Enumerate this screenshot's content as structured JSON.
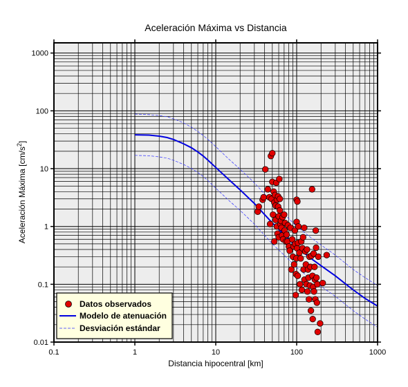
{
  "chart_data": {
    "type": "scatter",
    "title": "Aceleración Máxima vs Distancia",
    "xlabel": "Distancia hipocentral [km]",
    "ylabel_main": "Aceleración Máxima [cm/s",
    "ylabel_sup": "2",
    "ylabel_end": "]",
    "x_scale": "log",
    "y_scale": "log",
    "xlim": [
      0.1,
      1000
    ],
    "ylim": [
      0.01,
      1500
    ],
    "grid": true,
    "legend_position": "bottom-left",
    "x_ticks": [
      {
        "value": 0.1,
        "label": "0.1"
      },
      {
        "value": 1,
        "label": "1"
      },
      {
        "value": 10,
        "label": "10"
      },
      {
        "value": 100,
        "label": "100"
      },
      {
        "value": 1000,
        "label": "1000"
      }
    ],
    "y_ticks": [
      {
        "value": 0.01,
        "label": "0.01"
      },
      {
        "value": 0.1,
        "label": "0.1"
      },
      {
        "value": 1,
        "label": "1"
      },
      {
        "value": 10,
        "label": "10"
      },
      {
        "value": 100,
        "label": "100"
      },
      {
        "value": 1000,
        "label": "1000"
      }
    ],
    "colors": {
      "observed": "#e00000",
      "model": "#0000e0",
      "stddev": "#3030ff",
      "legend_bg": "#ffffe0",
      "plot_bg": "#ededed"
    },
    "series": [
      {
        "name": "Datos observados",
        "kind": "points",
        "points": [
          [
            33,
            1.8
          ],
          [
            34,
            2.2
          ],
          [
            38,
            2.9
          ],
          [
            39,
            3.2
          ],
          [
            41,
            9.7
          ],
          [
            44,
            4.4
          ],
          [
            46,
            3.2
          ],
          [
            47,
            1.1
          ],
          [
            48,
            16.5
          ],
          [
            49,
            3.0
          ],
          [
            50,
            18.5
          ],
          [
            50,
            5.9
          ],
          [
            51,
            1.6
          ],
          [
            52,
            4.0
          ],
          [
            53,
            2.6
          ],
          [
            53,
            0.55
          ],
          [
            54,
            3.5
          ],
          [
            55,
            1.3
          ],
          [
            55,
            2.3
          ],
          [
            56,
            5.7
          ],
          [
            57,
            2.9
          ],
          [
            57,
            1.0
          ],
          [
            58,
            0.75
          ],
          [
            59,
            3.3
          ],
          [
            59,
            2.2
          ],
          [
            60,
            1.5
          ],
          [
            60,
            0.65
          ],
          [
            61,
            6.6
          ],
          [
            62,
            3.0
          ],
          [
            62,
            1.9
          ],
          [
            63,
            1.1
          ],
          [
            64,
            1.25
          ],
          [
            65,
            0.95
          ],
          [
            66,
            0.7
          ],
          [
            67,
            1.45
          ],
          [
            68,
            0.6
          ],
          [
            70,
            1.6
          ],
          [
            71,
            0.85
          ],
          [
            72,
            1.15
          ],
          [
            74,
            0.55
          ],
          [
            75,
            0.72
          ],
          [
            77,
            0.55
          ],
          [
            78,
            1.05
          ],
          [
            80,
            0.45
          ],
          [
            82,
            0.38
          ],
          [
            84,
            0.95
          ],
          [
            86,
            0.18
          ],
          [
            88,
            0.6
          ],
          [
            90,
            0.3
          ],
          [
            92,
            0.45
          ],
          [
            93,
            0.22
          ],
          [
            95,
            0.85
          ],
          [
            96,
            0.5
          ],
          [
            97,
            0.065
          ],
          [
            98,
            0.15
          ],
          [
            99,
            0.28
          ],
          [
            100,
            2.9
          ],
          [
            100,
            1.2
          ],
          [
            101,
            0.42
          ],
          [
            102,
            2.7
          ],
          [
            103,
            0.14
          ],
          [
            104,
            0.52
          ],
          [
            105,
            1.0
          ],
          [
            108,
            0.35
          ],
          [
            110,
            0.1
          ],
          [
            112,
            0.28
          ],
          [
            114,
            0.55
          ],
          [
            116,
            0.08
          ],
          [
            118,
            0.42
          ],
          [
            120,
            0.65
          ],
          [
            122,
            0.18
          ],
          [
            124,
            0.95
          ],
          [
            125,
            0.12
          ],
          [
            128,
            0.37
          ],
          [
            130,
            0.22
          ],
          [
            132,
            0.1
          ],
          [
            134,
            0.4
          ],
          [
            136,
            0.075
          ],
          [
            138,
            0.18
          ],
          [
            140,
            0.13
          ],
          [
            142,
            0.055
          ],
          [
            144,
            0.3
          ],
          [
            146,
            0.095
          ],
          [
            148,
            0.2
          ],
          [
            150,
            0.035
          ],
          [
            152,
            0.31
          ],
          [
            155,
            4.4
          ],
          [
            157,
            0.14
          ],
          [
            158,
            0.025
          ],
          [
            160,
            0.09
          ],
          [
            162,
            0.34
          ],
          [
            164,
            0.075
          ],
          [
            166,
            0.2
          ],
          [
            168,
            0.12
          ],
          [
            170,
            0.055
          ],
          [
            172,
            0.85
          ],
          [
            174,
            0.43
          ],
          [
            176,
            0.13
          ],
          [
            178,
            0.048
          ],
          [
            180,
            0.1
          ],
          [
            182,
            0.015
          ],
          [
            185,
            0.3
          ],
          [
            195,
            0.021
          ],
          [
            210,
            0.105
          ],
          [
            235,
            0.32
          ]
        ]
      },
      {
        "name": "Modelo de atenuación",
        "kind": "line",
        "x": [
          1,
          1.5,
          2,
          2.5,
          3,
          4,
          5,
          6,
          7,
          8,
          10,
          15,
          20,
          30,
          50,
          70,
          100,
          150,
          200,
          300,
          500,
          700,
          1000
        ],
        "y": [
          38.5,
          38,
          36.5,
          34.5,
          32,
          27,
          23,
          19.5,
          16.5,
          14,
          10.5,
          6.2,
          4.3,
          2.5,
          1.15,
          0.72,
          0.44,
          0.28,
          0.21,
          0.14,
          0.08,
          0.057,
          0.042
        ]
      },
      {
        "name": "Desviación estándar",
        "kind": "dashed",
        "x": [
          1,
          1.5,
          2,
          2.5,
          3,
          4,
          5,
          6,
          7,
          8,
          10,
          15,
          20,
          30,
          50,
          70,
          100,
          150,
          200,
          300,
          500,
          700,
          1000
        ],
        "y": [
          88,
          86,
          83,
          79,
          73,
          62,
          52,
          44,
          37.5,
          32,
          24,
          14,
          9.8,
          5.7,
          2.6,
          1.64,
          1.0,
          0.64,
          0.48,
          0.32,
          0.18,
          0.13,
          0.095
        ]
      },
      {
        "name": "Desviación estándar (inferior)",
        "kind": "dashed",
        "show_in_legend": false,
        "x": [
          1,
          1.5,
          2,
          2.5,
          3,
          4,
          5,
          6,
          7,
          8,
          10,
          15,
          20,
          30,
          50,
          70,
          100,
          150,
          200,
          300,
          500,
          700,
          1000
        ],
        "y": [
          17,
          16.7,
          16,
          15.2,
          14,
          11.8,
          10.1,
          8.6,
          7.3,
          6.2,
          4.6,
          2.7,
          1.9,
          1.1,
          0.5,
          0.32,
          0.195,
          0.123,
          0.092,
          0.062,
          0.035,
          0.025,
          0.018
        ]
      }
    ]
  }
}
